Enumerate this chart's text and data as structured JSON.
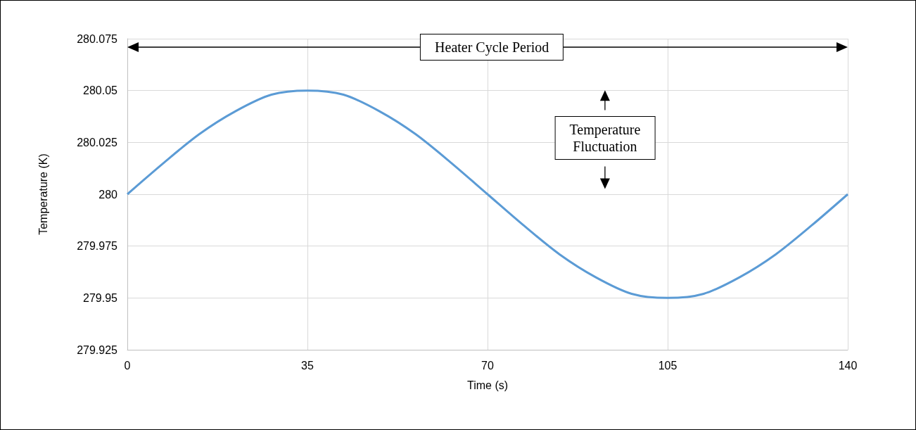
{
  "chart_data": {
    "type": "line",
    "xlabel": "Time (s)",
    "ylabel": "Temperature (K)",
    "x": [
      0,
      7,
      14,
      21,
      28,
      35,
      42,
      49,
      56,
      63,
      70,
      77,
      84,
      91,
      98,
      105,
      112,
      119,
      126,
      133,
      140
    ],
    "values": [
      280,
      280.015,
      280.029,
      280.04,
      280.048,
      280.05,
      280.048,
      280.04,
      280.029,
      280.015,
      280,
      279.985,
      279.971,
      279.96,
      279.952,
      279.95,
      279.952,
      279.96,
      279.971,
      279.985,
      280
    ],
    "color": "#5b9bd5",
    "xlim": [
      0,
      140
    ],
    "xticks": [
      0,
      35,
      70,
      105,
      140
    ],
    "ylim": [
      279.925,
      280.075
    ],
    "yticks": [
      279.925,
      279.95,
      279.975,
      280,
      280.025,
      280.05,
      280.075
    ],
    "grid": true,
    "annotations": [
      "Heater Cycle Period",
      "Temperature\nFluctuation"
    ]
  }
}
